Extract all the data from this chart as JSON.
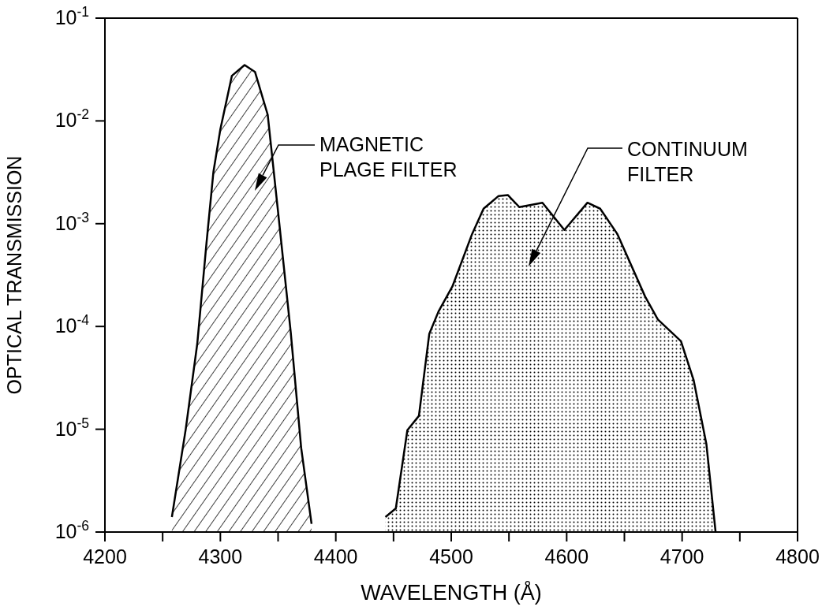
{
  "chart_data": {
    "type": "area",
    "xlabel": "WAVELENGTH (Å)",
    "ylabel": "OPTICAL TRANSMISSION",
    "log": "y",
    "xlim": [
      4200,
      4800
    ],
    "ylim": [
      1e-06,
      0.1
    ],
    "xticks": [
      4200,
      {
        "value": 4250,
        "label": null
      },
      4300,
      {
        "value": 4350,
        "label": null
      },
      4400,
      {
        "value": 4450,
        "label": null
      },
      4500,
      {
        "value": 4550,
        "label": null
      },
      4600,
      {
        "value": 4650,
        "label": null
      },
      4700,
      {
        "value": 4750,
        "label": null
      },
      4800
    ],
    "yticks": [
      {
        "value": 1e-06,
        "label": "10$^{-6}$"
      },
      {
        "value": 1e-05,
        "label": "10$^{-5}$"
      },
      {
        "value": 0.0001,
        "label": "10$^{-4}$"
      },
      {
        "value": 0.001,
        "label": "10$^{-3}$"
      },
      {
        "value": 0.01,
        "label": "10$^{-2}$"
      },
      {
        "value": 0.1,
        "label": "10$^{-1}$"
      }
    ],
    "series": [
      {
        "color": "#000000",
        "x": [
          4258,
          4270,
          4280,
          4288,
          4294,
          4300,
          4310,
          4321,
          4330,
          4341,
          4350,
          4361,
          4370,
          4379
        ],
        "values": [
          1.4e-06,
          1e-05,
          6.8e-05,
          0.00065,
          0.0032,
          0.0083,
          0.0275,
          0.035,
          0.03,
          0.0115,
          0.0013,
          8.7e-05,
          6.6e-06,
          1.2e-06
        ]
      },
      {
        "color": "#000000",
        "x": [
          4443,
          4452,
          4462,
          4472,
          4481,
          4489,
          4501,
          4518,
          4528,
          4541,
          4549,
          4559,
          4579,
          4598,
          4618,
          4629,
          4644,
          4668,
          4679,
          4699,
          4710,
          4721,
          4729
        ],
        "values": [
          1.4e-06,
          1.7e-06,
          9.8e-06,
          1.35e-05,
          8.5e-05,
          0.00014,
          0.000245,
          0.00079,
          0.0014,
          0.00186,
          0.0019,
          0.00145,
          0.0016,
          0.00087,
          0.0016,
          0.0014,
          0.00079,
          0.000195,
          0.000117,
          7.2e-05,
          3e-05,
          7.2e-06,
          1e-06
        ]
      }
    ],
    "annotations": [
      "MAGNETIC\nPLAGE FILTER",
      "CONTINUUM\nFILTER"
    ]
  }
}
